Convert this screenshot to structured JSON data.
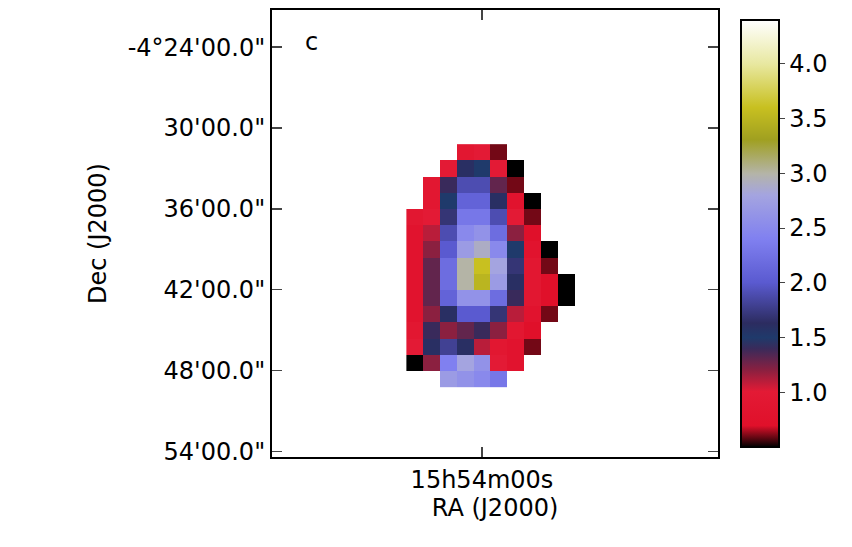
{
  "chart_data": {
    "type": "heatmap",
    "panel_label": "c",
    "x_label": "RA (J2000)",
    "y_label": "Dec (J2000)",
    "x": [
      238.58,
      238.56,
      238.54,
      238.52,
      238.5,
      238.48,
      238.46,
      238.44,
      238.42,
      238.4,
      238.38
    ],
    "y": [
      -4.53,
      -4.55,
      -4.57,
      -4.59,
      -4.61,
      -4.63,
      -4.65,
      -4.67,
      -4.69,
      -4.71,
      -4.73,
      -4.75,
      -4.77,
      -4.79,
      -4.81
    ],
    "z": [
      [
        null,
        null,
        null,
        0.9,
        1.0,
        0.6,
        null,
        null,
        null,
        null,
        null
      ],
      [
        null,
        null,
        1.0,
        1.6,
        1.5,
        1.0,
        0.5,
        null,
        null,
        null,
        null
      ],
      [
        null,
        0.9,
        1.4,
        1.9,
        1.9,
        1.3,
        0.6,
        null,
        null,
        null,
        null
      ],
      [
        null,
        0.9,
        1.5,
        2.1,
        2.1,
        1.6,
        0.8,
        0.5,
        null,
        null,
        null
      ],
      [
        0.9,
        1.0,
        1.7,
        2.3,
        2.3,
        1.9,
        1.0,
        0.6,
        null,
        null,
        null
      ],
      [
        0.8,
        1.1,
        1.9,
        2.5,
        2.6,
        2.2,
        1.2,
        0.7,
        null,
        null,
        null
      ],
      [
        0.8,
        1.2,
        2.0,
        2.7,
        2.9,
        2.5,
        1.5,
        0.8,
        0.5,
        null,
        null
      ],
      [
        0.8,
        1.3,
        2.2,
        3.0,
        3.6,
        2.8,
        1.7,
        0.9,
        0.6,
        null,
        null
      ],
      [
        0.8,
        1.3,
        2.2,
        3.0,
        3.5,
        2.7,
        1.6,
        0.9,
        0.7,
        0.5,
        null
      ],
      [
        0.8,
        1.3,
        2.1,
        2.6,
        2.6,
        2.2,
        1.4,
        0.9,
        0.7,
        0.5,
        null
      ],
      [
        0.8,
        1.2,
        1.6,
        2.0,
        2.0,
        1.7,
        1.1,
        0.8,
        0.6,
        null,
        null
      ],
      [
        0.9,
        1.4,
        1.2,
        1.3,
        1.4,
        1.2,
        0.9,
        0.7,
        null,
        null,
        null
      ],
      [
        1.0,
        1.6,
        1.8,
        1.6,
        1.1,
        0.9,
        0.8,
        0.6,
        null,
        null,
        null
      ],
      [
        0.5,
        1.2,
        2.4,
        2.8,
        2.6,
        1.0,
        0.8,
        null,
        null,
        null,
        null
      ],
      [
        null,
        null,
        2.7,
        2.6,
        2.5,
        2.3,
        null,
        null,
        null,
        null,
        null
      ]
    ],
    "xlim": [
      238.75,
      238.219
    ],
    "ylim": [
      -4.907,
      -4.354
    ],
    "xticks": [
      {
        "value": 238.5,
        "label": "15h54m00s"
      }
    ],
    "yticks": [
      {
        "value": -4.4,
        "label": "-4°24'00.0\""
      },
      {
        "value": -4.5,
        "label": "30'00.0\""
      },
      {
        "value": -4.6,
        "label": "36'00.0\""
      },
      {
        "value": -4.7,
        "label": "42'00.0\""
      },
      {
        "value": -4.8,
        "label": "48'00.0\""
      },
      {
        "value": -4.9,
        "label": "54'00.0\""
      }
    ],
    "colorbar": {
      "range": [
        0.5,
        4.4
      ],
      "ticks": [
        {
          "value": 1,
          "label": "1.0"
        },
        {
          "value": 1.5,
          "label": "1.5"
        },
        {
          "value": 2,
          "label": "2.0"
        },
        {
          "value": 2.5,
          "label": "2.5"
        },
        {
          "value": 3,
          "label": "3.0"
        },
        {
          "value": 3.5,
          "label": "3.5"
        },
        {
          "value": 4,
          "label": "4.0"
        }
      ]
    }
  }
}
